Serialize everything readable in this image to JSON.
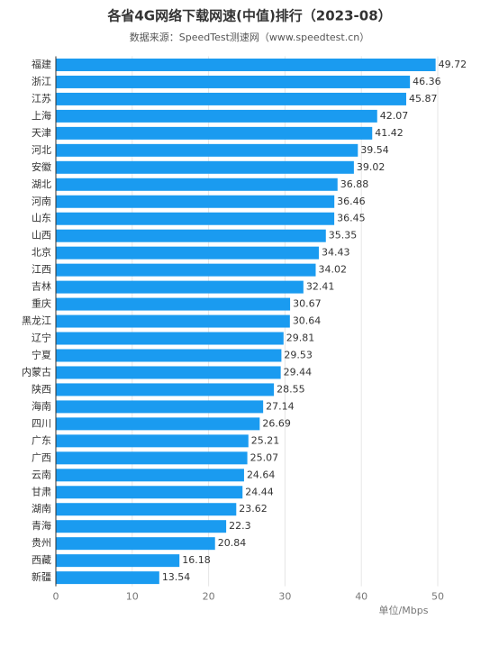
{
  "chart_data": {
    "type": "hbar",
    "title": "各省4G网络下载网速(中值)排行（2023-08）",
    "subtitle": "数据来源：SpeedTest测速网（www.speedtest.cn）",
    "xlabel": "单位/Mbps",
    "categories": [
      "福建",
      "浙江",
      "江苏",
      "上海",
      "天津",
      "河北",
      "安徽",
      "湖北",
      "河南",
      "山东",
      "山西",
      "北京",
      "江西",
      "吉林",
      "重庆",
      "黑龙江",
      "辽宁",
      "宁夏",
      "内蒙古",
      "陕西",
      "海南",
      "四川",
      "广东",
      "广西",
      "云南",
      "甘肃",
      "湖南",
      "青海",
      "贵州",
      "西藏",
      "新疆"
    ],
    "values": [
      49.72,
      46.36,
      45.87,
      42.07,
      41.42,
      39.54,
      39.02,
      36.88,
      36.46,
      36.45,
      35.35,
      34.43,
      34.02,
      32.41,
      30.67,
      30.64,
      29.81,
      29.53,
      29.44,
      28.55,
      27.14,
      26.69,
      25.21,
      25.07,
      24.64,
      24.44,
      23.62,
      22.3,
      20.84,
      16.18,
      13.54
    ],
    "color": "#1a9bf0",
    "xlim": [
      0,
      50
    ],
    "xticks": [
      0,
      10,
      20,
      30,
      40,
      50
    ],
    "grid": true
  }
}
